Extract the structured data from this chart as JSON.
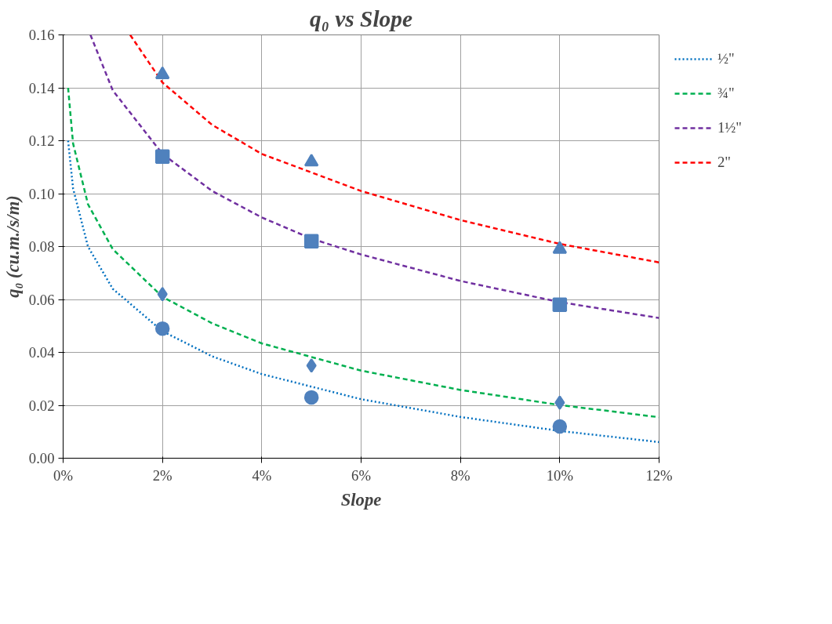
{
  "chart_data": {
    "type": "line",
    "title": "q₀ vs Slope",
    "xlabel": "Slope",
    "ylabel": "q₀ (cu.m./s/m)",
    "xlim": [
      0,
      0.12
    ],
    "ylim": [
      0,
      0.16
    ],
    "xticks": [
      {
        "value": 0,
        "label": "0%"
      },
      {
        "value": 0.02,
        "label": "2%"
      },
      {
        "value": 0.04,
        "label": "4%"
      },
      {
        "value": 0.06,
        "label": "6%"
      },
      {
        "value": 0.08,
        "label": "8%"
      },
      {
        "value": 0.1,
        "label": "10%"
      },
      {
        "value": 0.12,
        "label": "12%"
      }
    ],
    "yticks": [
      {
        "value": 0,
        "label": "0.00"
      },
      {
        "value": 0.02,
        "label": "0.02"
      },
      {
        "value": 0.04,
        "label": "0.04"
      },
      {
        "value": 0.06,
        "label": "0.06"
      },
      {
        "value": 0.08,
        "label": "0.08"
      },
      {
        "value": 0.1,
        "label": "0.10"
      },
      {
        "value": 0.12,
        "label": "0.12"
      },
      {
        "value": 0.14,
        "label": "0.14"
      },
      {
        "value": 0.16,
        "label": "0.16"
      }
    ],
    "grid": true,
    "legend": "right",
    "marker": "none",
    "series": [
      {
        "name": "½\"",
        "color": "#0070c0",
        "line_style": "dotted",
        "x": [
          0.001,
          0.002,
          0.005,
          0.01,
          0.02,
          0.03,
          0.04,
          0.06,
          0.08,
          0.1,
          0.12
        ],
        "values": [
          0.12,
          0.102,
          0.08,
          0.064,
          0.048,
          0.0385,
          0.0318,
          0.0223,
          0.0156,
          0.0103,
          0.0061
        ]
      },
      {
        "name": "¾\"",
        "color": "#00b050",
        "line_style": "dashed",
        "x": [
          0.001,
          0.002,
          0.005,
          0.01,
          0.02,
          0.03,
          0.04,
          0.06,
          0.08,
          0.1,
          0.12
        ],
        "values": [
          0.14,
          0.119,
          0.096,
          0.079,
          0.061,
          0.051,
          0.0434,
          0.0331,
          0.0258,
          0.0201,
          0.0155
        ]
      },
      {
        "name": "1½\"",
        "color": "#7030a0",
        "line_style": "dashed",
        "x": [
          0.0055,
          0.01,
          0.02,
          0.03,
          0.04,
          0.05,
          0.06,
          0.08,
          0.1,
          0.12
        ],
        "values": [
          0.16,
          0.139,
          0.115,
          0.101,
          0.091,
          0.083,
          0.077,
          0.067,
          0.059,
          0.053
        ]
      },
      {
        "name": "2\"",
        "color": "#ff0000",
        "line_style": "dashed",
        "x": [
          0.0135,
          0.02,
          0.03,
          0.04,
          0.05,
          0.06,
          0.08,
          0.1,
          0.12
        ],
        "values": [
          0.16,
          0.142,
          0.126,
          0.115,
          0.108,
          0.101,
          0.09,
          0.081,
          0.074
        ]
      },
      {
        "type": "scatter",
        "marker": "circle",
        "color": "#4f81bd",
        "x": [
          0.02,
          0.05,
          0.1
        ],
        "values": [
          0.049,
          0.023,
          0.012
        ]
      },
      {
        "type": "scatter",
        "marker": "diamond",
        "color": "#4f81bd",
        "x": [
          0.02,
          0.05,
          0.1
        ],
        "values": [
          0.062,
          0.035,
          0.021
        ]
      },
      {
        "type": "scatter",
        "marker": "square",
        "color": "#4f81bd",
        "x": [
          0.02,
          0.05,
          0.1
        ],
        "values": [
          0.114,
          0.082,
          0.058
        ]
      },
      {
        "type": "scatter",
        "marker": "triangle",
        "color": "#4f81bd",
        "x": [
          0.02,
          0.05,
          0.1
        ],
        "values": [
          0.145,
          0.112,
          0.079
        ]
      }
    ]
  }
}
